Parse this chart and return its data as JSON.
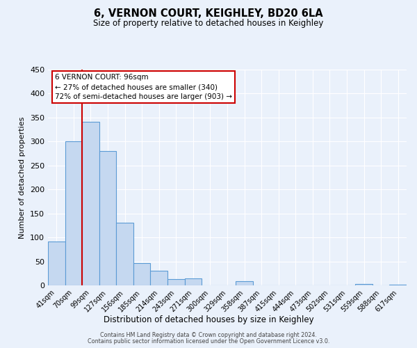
{
  "title": "6, VERNON COURT, KEIGHLEY, BD20 6LA",
  "subtitle": "Size of property relative to detached houses in Keighley",
  "xlabel": "Distribution of detached houses by size in Keighley",
  "ylabel": "Number of detached properties",
  "bar_labels": [
    "41sqm",
    "70sqm",
    "99sqm",
    "127sqm",
    "156sqm",
    "185sqm",
    "214sqm",
    "243sqm",
    "271sqm",
    "300sqm",
    "329sqm",
    "358sqm",
    "387sqm",
    "415sqm",
    "444sqm",
    "473sqm",
    "502sqm",
    "531sqm",
    "559sqm",
    "588sqm",
    "617sqm"
  ],
  "bar_values": [
    92,
    301,
    341,
    280,
    131,
    47,
    30,
    13,
    14,
    0,
    0,
    8,
    0,
    0,
    0,
    0,
    0,
    0,
    3,
    0,
    2
  ],
  "bar_color": "#c5d8f0",
  "bar_edge_color": "#5b9bd5",
  "ylim": [
    0,
    450
  ],
  "yticks": [
    0,
    50,
    100,
    150,
    200,
    250,
    300,
    350,
    400,
    450
  ],
  "vline_color": "#cc0000",
  "annotation_title": "6 VERNON COURT: 96sqm",
  "annotation_line1": "← 27% of detached houses are smaller (340)",
  "annotation_line2": "72% of semi-detached houses are larger (903) →",
  "annotation_box_color": "#ffffff",
  "annotation_box_edge": "#cc0000",
  "bg_color": "#eaf1fb",
  "footer1": "Contains HM Land Registry data © Crown copyright and database right 2024.",
  "footer2": "Contains public sector information licensed under the Open Government Licence v3.0."
}
